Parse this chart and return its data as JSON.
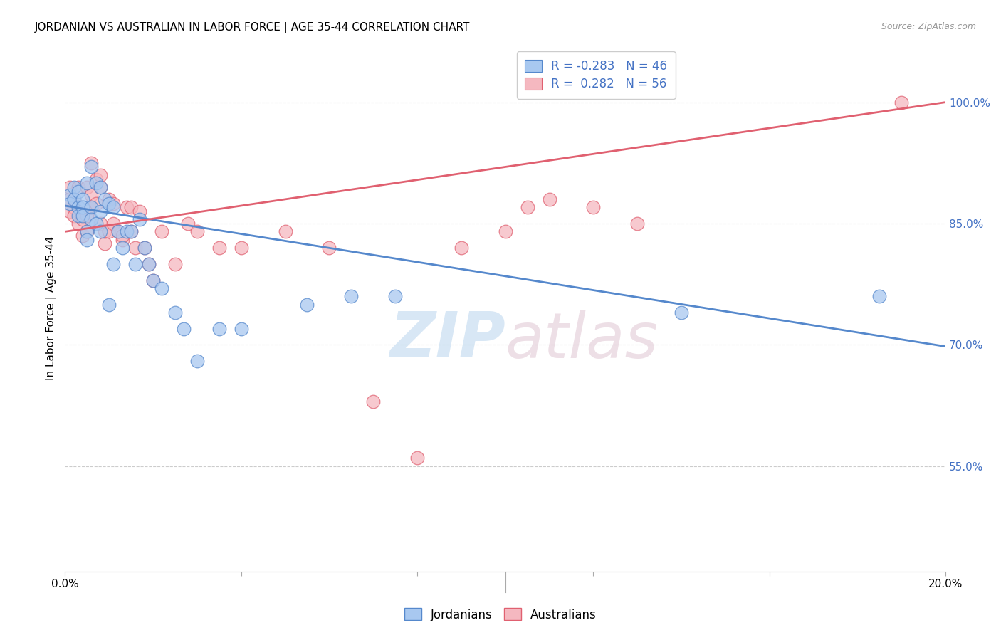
{
  "title": "JORDANIAN VS AUSTRALIAN IN LABOR FORCE | AGE 35-44 CORRELATION CHART",
  "source": "Source: ZipAtlas.com",
  "ylabel": "In Labor Force | Age 35-44",
  "xmin": 0.0,
  "xmax": 0.2,
  "ymin": 0.42,
  "ymax": 1.07,
  "right_yticks": [
    1.0,
    0.85,
    0.7,
    0.55
  ],
  "right_yticklabels": [
    "100.0%",
    "85.0%",
    "70.0%",
    "55.0%"
  ],
  "xticks": [
    0.0,
    0.04,
    0.08,
    0.12,
    0.16,
    0.2
  ],
  "xticklabels": [
    "0.0%",
    "",
    "",
    "",
    "",
    "20.0%"
  ],
  "legend_r_blue": "-0.283",
  "legend_n_blue": "46",
  "legend_r_pink": "0.282",
  "legend_n_pink": "56",
  "blue_color": "#A8C8F0",
  "pink_color": "#F5B8C0",
  "blue_line_color": "#5588CC",
  "pink_line_color": "#E06070",
  "watermark_zip": "ZIP",
  "watermark_atlas": "atlas",
  "jordanians_x": [
    0.001,
    0.001,
    0.002,
    0.002,
    0.003,
    0.003,
    0.003,
    0.004,
    0.004,
    0.004,
    0.005,
    0.005,
    0.005,
    0.006,
    0.006,
    0.006,
    0.007,
    0.007,
    0.008,
    0.008,
    0.008,
    0.009,
    0.01,
    0.01,
    0.011,
    0.011,
    0.012,
    0.013,
    0.014,
    0.015,
    0.016,
    0.017,
    0.018,
    0.019,
    0.02,
    0.022,
    0.025,
    0.027,
    0.03,
    0.035,
    0.04,
    0.055,
    0.065,
    0.075,
    0.14,
    0.185
  ],
  "jordanians_y": [
    0.885,
    0.875,
    0.895,
    0.88,
    0.87,
    0.86,
    0.89,
    0.88,
    0.87,
    0.86,
    0.9,
    0.84,
    0.83,
    0.92,
    0.87,
    0.855,
    0.9,
    0.85,
    0.895,
    0.865,
    0.84,
    0.88,
    0.875,
    0.75,
    0.87,
    0.8,
    0.84,
    0.82,
    0.84,
    0.84,
    0.8,
    0.855,
    0.82,
    0.8,
    0.78,
    0.77,
    0.74,
    0.72,
    0.68,
    0.72,
    0.72,
    0.75,
    0.76,
    0.76,
    0.74,
    0.76
  ],
  "australians_x": [
    0.001,
    0.001,
    0.001,
    0.002,
    0.002,
    0.002,
    0.003,
    0.003,
    0.003,
    0.004,
    0.004,
    0.005,
    0.005,
    0.005,
    0.006,
    0.006,
    0.006,
    0.007,
    0.007,
    0.008,
    0.008,
    0.008,
    0.009,
    0.009,
    0.01,
    0.01,
    0.011,
    0.011,
    0.012,
    0.013,
    0.013,
    0.014,
    0.015,
    0.015,
    0.016,
    0.017,
    0.018,
    0.019,
    0.02,
    0.022,
    0.025,
    0.028,
    0.03,
    0.035,
    0.04,
    0.05,
    0.06,
    0.07,
    0.08,
    0.09,
    0.1,
    0.105,
    0.11,
    0.12,
    0.13,
    0.19
  ],
  "australians_y": [
    0.88,
    0.865,
    0.895,
    0.87,
    0.86,
    0.88,
    0.85,
    0.87,
    0.895,
    0.855,
    0.835,
    0.895,
    0.84,
    0.86,
    0.925,
    0.87,
    0.885,
    0.905,
    0.875,
    0.895,
    0.85,
    0.91,
    0.825,
    0.84,
    0.88,
    0.84,
    0.875,
    0.85,
    0.84,
    0.83,
    0.835,
    0.87,
    0.84,
    0.87,
    0.82,
    0.865,
    0.82,
    0.8,
    0.78,
    0.84,
    0.8,
    0.85,
    0.84,
    0.82,
    0.82,
    0.84,
    0.82,
    0.63,
    0.56,
    0.82,
    0.84,
    0.87,
    0.88,
    0.87,
    0.85,
    1.0
  ],
  "blue_trendline_x": [
    0.0,
    0.2
  ],
  "blue_trendline_y": [
    0.872,
    0.698
  ],
  "pink_trendline_x": [
    0.0,
    0.2
  ],
  "pink_trendline_y": [
    0.84,
    1.0
  ]
}
